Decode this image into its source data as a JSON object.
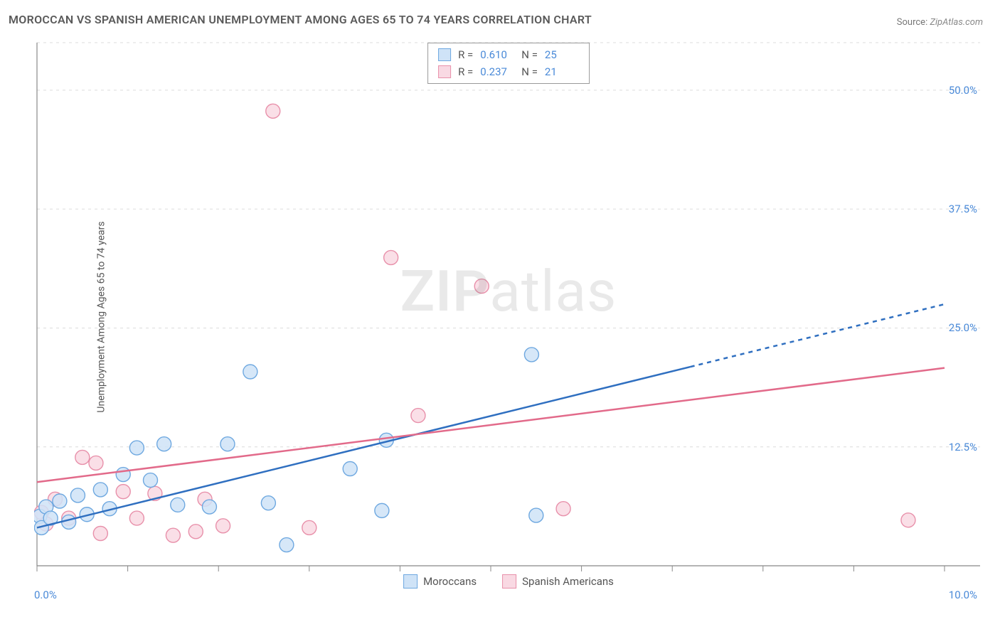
{
  "title": "MOROCCAN VS SPANISH AMERICAN UNEMPLOYMENT AMONG AGES 65 TO 74 YEARS CORRELATION CHART",
  "source_label": "Source:",
  "source_value": "ZipAtlas.com",
  "ylabel": "Unemployment Among Ages 65 to 74 years",
  "watermark_zip": "ZIP",
  "watermark_atlas": "atlas",
  "chart": {
    "type": "scatter",
    "background_color": "#ffffff",
    "grid_color": "#dcdcdc",
    "axis_color": "#888888",
    "tick_label_color": "#4a8ad8",
    "tick_label_fontsize": 15,
    "xlim": [
      0,
      10
    ],
    "ylim": [
      0,
      55
    ],
    "x_tick_positions": [
      0,
      1,
      2,
      3,
      4,
      5,
      6,
      7,
      8,
      9,
      10
    ],
    "x_tick_labels_shown": {
      "0": "0.0%",
      "10": "10.0%"
    },
    "y_grid_lines": [
      12.5,
      25.0,
      37.5,
      50.0,
      55.0
    ],
    "y_tick_labels": {
      "12.5": "12.5%",
      "25.0": "25.0%",
      "37.5": "37.5%",
      "50.0": "50.0%"
    },
    "series": [
      {
        "name": "Moroccans",
        "marker_fill": "#cfe3f7",
        "marker_stroke": "#6ea8e0",
        "marker_radius": 10,
        "marker_opacity": 0.85,
        "line_color": "#2f6fc0",
        "line_width": 2.5,
        "line_solid_end_x": 7.2,
        "line_dash": "6,6",
        "trend": {
          "x1": 0,
          "y1": 4.0,
          "x2": 10,
          "y2": 27.5
        },
        "R": "0.610",
        "N": "25",
        "points": [
          [
            0.03,
            5.2
          ],
          [
            0.05,
            4.0
          ],
          [
            0.1,
            6.2
          ],
          [
            0.15,
            5.0
          ],
          [
            0.25,
            6.8
          ],
          [
            0.35,
            4.6
          ],
          [
            0.45,
            7.4
          ],
          [
            0.55,
            5.4
          ],
          [
            0.7,
            8.0
          ],
          [
            0.8,
            6.0
          ],
          [
            0.95,
            9.6
          ],
          [
            1.1,
            12.4
          ],
          [
            1.25,
            9.0
          ],
          [
            1.4,
            12.8
          ],
          [
            1.55,
            6.4
          ],
          [
            1.9,
            6.2
          ],
          [
            2.1,
            12.8
          ],
          [
            2.35,
            20.4
          ],
          [
            2.55,
            6.6
          ],
          [
            2.75,
            2.2
          ],
          [
            3.45,
            10.2
          ],
          [
            3.8,
            5.8
          ],
          [
            3.85,
            13.2
          ],
          [
            5.45,
            22.2
          ],
          [
            5.5,
            5.3
          ]
        ]
      },
      {
        "name": "Spanish Americans",
        "marker_fill": "#f9d9e3",
        "marker_stroke": "#e890aa",
        "marker_radius": 10,
        "marker_opacity": 0.85,
        "line_color": "#e26a8a",
        "line_width": 2.5,
        "line_solid_end_x": 10,
        "line_dash": "",
        "trend": {
          "x1": 0,
          "y1": 8.8,
          "x2": 10,
          "y2": 20.8
        },
        "R": "0.237",
        "N": "21",
        "points": [
          [
            0.05,
            5.6
          ],
          [
            0.1,
            4.4
          ],
          [
            0.2,
            7.0
          ],
          [
            0.35,
            5.0
          ],
          [
            0.5,
            11.4
          ],
          [
            0.65,
            10.8
          ],
          [
            0.7,
            3.4
          ],
          [
            0.95,
            7.8
          ],
          [
            1.1,
            5.0
          ],
          [
            1.3,
            7.6
          ],
          [
            1.5,
            3.2
          ],
          [
            1.75,
            3.6
          ],
          [
            2.05,
            4.2
          ],
          [
            2.6,
            47.8
          ],
          [
            3.0,
            4.0
          ],
          [
            3.9,
            32.4
          ],
          [
            4.2,
            15.8
          ],
          [
            4.9,
            29.4
          ],
          [
            5.8,
            6.0
          ],
          [
            9.6,
            4.8
          ],
          [
            1.85,
            7.0
          ]
        ]
      }
    ],
    "legend_bottom": [
      {
        "swatch_fill": "#cfe3f7",
        "swatch_stroke": "#6ea8e0",
        "label": "Moroccans"
      },
      {
        "swatch_fill": "#f9d9e3",
        "swatch_stroke": "#e890aa",
        "label": "Spanish Americans"
      }
    ],
    "stats_box": [
      {
        "swatch_fill": "#cfe3f7",
        "swatch_stroke": "#6ea8e0",
        "R_label": "R =",
        "R": "0.610",
        "N_label": "N =",
        "N": "25"
      },
      {
        "swatch_fill": "#f9d9e3",
        "swatch_stroke": "#e890aa",
        "R_label": "R =",
        "R": "0.237",
        "N_label": "N =",
        "N": "21"
      }
    ]
  }
}
